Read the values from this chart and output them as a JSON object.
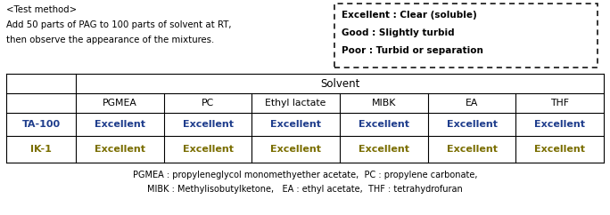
{
  "test_method_lines": [
    "<Test method>",
    "Add 50 parts of PAG to 100 parts of solvent at RT,",
    "then observe the appearance of the mixtures."
  ],
  "legend_lines": [
    "Excellent : Clear (soluble)",
    "Good : Slightly turbid",
    "Poor : Turbid or separation"
  ],
  "solvent_header": "Solvent",
  "col_headers": [
    "",
    "PGMEA",
    "PC",
    "Ethyl lactate",
    "MIBK",
    "EA",
    "THF"
  ],
  "row_labels": [
    "TA-100",
    "IK-1"
  ],
  "row_label_colors": [
    "#1f3d8c",
    "#7a6e00"
  ],
  "data_values": [
    [
      "Excellent",
      "Excellent",
      "Excellent",
      "Excellent",
      "Excellent",
      "Excellent"
    ],
    [
      "Excellent",
      "Excellent",
      "Excellent",
      "Excellent",
      "Excellent",
      "Excellent"
    ]
  ],
  "data_colors": [
    [
      "#1f3d8c",
      "#1f3d8c",
      "#1f3d8c",
      "#1f3d8c",
      "#1f3d8c",
      "#1f3d8c"
    ],
    [
      "#7a6e00",
      "#7a6e00",
      "#7a6e00",
      "#7a6e00",
      "#7a6e00",
      "#7a6e00"
    ]
  ],
  "footnote_lines": [
    "PGMEA : propyleneglycol monomethyether acetate,  PC : propylene carbonate,",
    "MIBK : Methylisobutylketone,   EA : ethyl acetate,  THF : tetrahydrofuran"
  ],
  "bg_color": "#ffffff"
}
